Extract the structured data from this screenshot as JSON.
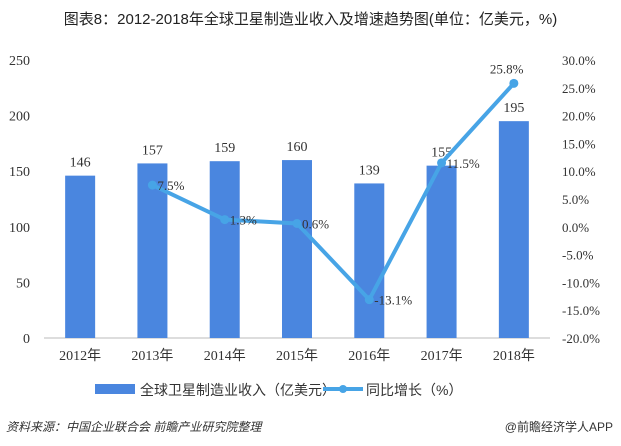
{
  "title": "图表8：2012-2018年全球卫星制造业收入及增速趋势图(单位：亿美元，%)",
  "source": "资料来源：中国企业联合会 前瞻产业研究院整理",
  "credit": "@前瞻经济学人APP",
  "chart_data": {
    "type": "bar+line",
    "categories": [
      "2012年",
      "2013年",
      "2014年",
      "2015年",
      "2016年",
      "2017年",
      "2018年"
    ],
    "series": [
      {
        "name": "全球卫星制造业收入（亿美元）",
        "type": "bar",
        "axis": "left",
        "color": "#4a86df",
        "values": [
          146,
          157,
          159,
          160,
          139,
          155,
          195
        ],
        "labels": [
          "146",
          "157",
          "159",
          "160",
          "139",
          "155",
          "195"
        ]
      },
      {
        "name": "同比增长（%）",
        "type": "line",
        "axis": "right",
        "color": "#47a4e6",
        "values": [
          null,
          7.5,
          1.3,
          0.6,
          -13.1,
          11.5,
          25.8
        ],
        "labels": [
          "",
          "7.5%",
          "1.3%",
          "0.6%",
          "-13.1%",
          "11.5%",
          "25.8%"
        ]
      }
    ],
    "left_axis": {
      "ylim": [
        0,
        250
      ],
      "ticks": [
        "0",
        "50",
        "100",
        "150",
        "200",
        "250"
      ]
    },
    "right_axis": {
      "ylim": [
        -20,
        30
      ],
      "ticks": [
        "-20.0%",
        "-15.0%",
        "-10.0%",
        "-5.0%",
        "0.0%",
        "5.0%",
        "10.0%",
        "15.0%",
        "20.0%",
        "25.0%",
        "30.0%"
      ]
    },
    "legend_position": "bottom"
  }
}
